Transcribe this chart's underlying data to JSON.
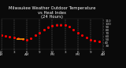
{
  "title": "Milwaukee Weather Outdoor Temperature\nvs Heat Index\n(24 Hours)",
  "title_fontsize": 3.8,
  "bg_color": "#0a0a0a",
  "plot_bg_color": "#0a0a0a",
  "grid_color": "#666666",
  "xlim": [
    0,
    24
  ],
  "ylim": [
    20,
    115
  ],
  "temp_color": "#ff0000",
  "heat_dot_color": "#000000",
  "orange_color": "#ff9900",
  "temp_x": [
    0,
    1,
    2,
    3,
    4,
    5,
    6,
    7,
    8,
    9,
    10,
    11,
    12,
    13,
    14,
    15,
    16,
    17,
    18,
    19,
    20,
    21,
    22,
    23
  ],
  "temp_y": [
    65,
    62,
    59,
    57,
    54,
    52,
    50,
    55,
    63,
    72,
    80,
    88,
    93,
    96,
    97,
    95,
    90,
    82,
    72,
    63,
    56,
    50,
    46,
    44
  ],
  "heat_x": [
    8,
    9,
    10,
    11,
    12,
    13,
    14,
    15
  ],
  "heat_y": [
    64,
    73,
    81,
    90,
    95,
    98,
    99,
    97
  ],
  "orange_x": [
    3.5,
    5.5
  ],
  "orange_y": [
    52,
    52
  ],
  "vgrid_x": [
    0,
    3,
    6,
    9,
    12,
    15,
    18,
    21,
    24
  ],
  "x_tick_pos": [
    0,
    3,
    6,
    9,
    12,
    15,
    18,
    21,
    24
  ],
  "x_tick_top": [
    "12",
    "3",
    "6",
    "9",
    "12",
    "3",
    "6",
    "9",
    "12"
  ],
  "x_tick_bot": [
    "AM",
    "",
    "AM",
    "",
    "PM",
    "",
    "PM",
    "",
    "AM"
  ],
  "ytick_pos": [
    30,
    40,
    50,
    60,
    70,
    80,
    90,
    100,
    110
  ],
  "ytick_labels": [
    "30",
    "40",
    "50",
    "60",
    "70",
    "80",
    "90",
    "100",
    "110"
  ],
  "tick_label_color": "#cccccc",
  "title_color": "#ffffff",
  "tick_fontsize": 3.0,
  "marker_size": 1.2,
  "heat_marker_color": "#222222"
}
